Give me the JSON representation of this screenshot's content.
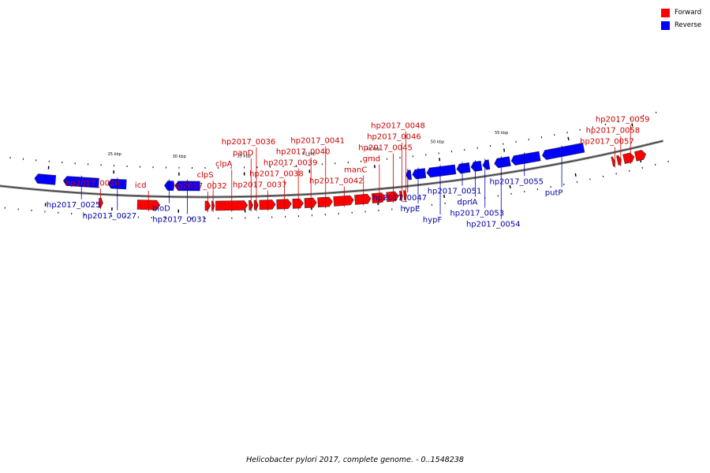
{
  "legend": {
    "forward_label": "Forward",
    "reverse_label": "Reverse",
    "forward_color": "#ff0000",
    "reverse_color": "#0000ff"
  },
  "caption": {
    "title": "Helicobacter pylori 2017, complete genome.",
    "range": "0..1548238"
  },
  "colors": {
    "forward_label": "#cc0000",
    "reverse_label": "#0000aa",
    "backbone": "#888888"
  },
  "scale": {
    "start_kbp": 20,
    "end_kbp": 62,
    "tick_labels": [
      "25 kbp",
      "30 kbp",
      "35 kbp",
      "40 kbp",
      "45 kbp",
      "50 kbp",
      "55 kbp"
    ],
    "tick_kbp": [
      25,
      30,
      35,
      40,
      45,
      50,
      55
    ]
  },
  "genes": [
    {
      "label": "",
      "strand": "-",
      "start_kbp": 19.0,
      "end_kbp": 20.6
    },
    {
      "label": "hp2017_0025",
      "strand": "-",
      "start_kbp": 21.2,
      "end_kbp": 23.9
    },
    {
      "label": "hp2017_0026",
      "strand": "+",
      "start_kbp": 24.0,
      "end_kbp": 24.3
    },
    {
      "label": "hp2017_0027",
      "strand": "-",
      "start_kbp": 24.6,
      "end_kbp": 26.0
    },
    {
      "label": "icd",
      "strand": "+",
      "start_kbp": 26.9,
      "end_kbp": 28.6
    },
    {
      "label": "bioD",
      "strand": "-",
      "start_kbp": 28.9,
      "end_kbp": 29.6
    },
    {
      "label": "hp2017_0031",
      "strand": "-",
      "start_kbp": 29.7,
      "end_kbp": 31.6
    },
    {
      "label": "hp2017_0032",
      "strand": "+",
      "start_kbp": 32.0,
      "end_kbp": 32.4
    },
    {
      "label": "clpS",
      "strand": "+",
      "start_kbp": 32.5,
      "end_kbp": 32.7
    },
    {
      "label": "clpA",
      "strand": "+",
      "start_kbp": 32.8,
      "end_kbp": 35.2
    },
    {
      "label": "panD",
      "strand": "+",
      "start_kbp": 35.3,
      "end_kbp": 35.6
    },
    {
      "label": "hp2017_0036",
      "strand": "+",
      "start_kbp": 35.7,
      "end_kbp": 36.0
    },
    {
      "label": "hp2017_0037",
      "strand": "+",
      "start_kbp": 36.1,
      "end_kbp": 37.3
    },
    {
      "label": "hp2017_0038",
      "strand": "+",
      "start_kbp": 37.4,
      "end_kbp": 38.5
    },
    {
      "label": "hp2017_0039",
      "strand": "+",
      "start_kbp": 38.6,
      "end_kbp": 39.4
    },
    {
      "label": "hp2017_0040",
      "strand": "+",
      "start_kbp": 39.5,
      "end_kbp": 40.4
    },
    {
      "label": "hp2017_0041",
      "strand": "+",
      "start_kbp": 40.5,
      "end_kbp": 41.6
    },
    {
      "label": "hp2017_0042",
      "strand": "+",
      "start_kbp": 41.7,
      "end_kbp": 43.2
    },
    {
      "label": "manC",
      "strand": "+",
      "start_kbp": 43.3,
      "end_kbp": 44.5
    },
    {
      "label": "gmd",
      "strand": "+",
      "start_kbp": 44.6,
      "end_kbp": 45.6
    },
    {
      "label": "hp2017_0045",
      "strand": "+",
      "start_kbp": 45.7,
      "end_kbp": 46.6
    },
    {
      "label": "hp2017_0046",
      "strand": "+",
      "start_kbp": 46.7,
      "end_kbp": 46.9
    },
    {
      "label": "hp2017_0047",
      "strand": "-",
      "start_kbp": 47.3,
      "end_kbp": 47.7
    },
    {
      "label": "hypE",
      "strand": "-",
      "start_kbp": 47.8,
      "end_kbp": 48.8
    },
    {
      "label": "hypF",
      "strand": "-",
      "start_kbp": 48.9,
      "end_kbp": 51.1
    },
    {
      "label": "hp2017_0051",
      "strand": "-",
      "start_kbp": 51.2,
      "end_kbp": 52.2
    },
    {
      "label": "dpnA",
      "strand": "-",
      "start_kbp": 52.3,
      "end_kbp": 53.1
    },
    {
      "label": "hp2017_0053",
      "strand": "-",
      "start_kbp": 53.2,
      "end_kbp": 53.7
    },
    {
      "label": "hp2017_0054",
      "strand": "-",
      "start_kbp": 54.1,
      "end_kbp": 55.3
    },
    {
      "label": "hp2017_0055",
      "strand": "-",
      "start_kbp": 55.4,
      "end_kbp": 57.6
    },
    {
      "label": "putP",
      "strand": "-",
      "start_kbp": 57.8,
      "end_kbp": 61.0
    },
    {
      "label": "hp2017_0048",
      "strand": "+",
      "start_kbp": 47.0,
      "end_kbp": 47.2
    },
    {
      "label": "hp2017_0057",
      "strand": "+",
      "start_kbp": 62.9,
      "end_kbp": 63.1
    },
    {
      "label": "hp2017_0058",
      "strand": "+",
      "start_kbp": 63.3,
      "end_kbp": 63.6
    },
    {
      "label": "hp2017_0059",
      "strand": "+",
      "start_kbp": 63.8,
      "end_kbp": 64.6
    },
    {
      "label": "",
      "strand": "+",
      "start_kbp": 64.7,
      "end_kbp": 65.5
    }
  ]
}
